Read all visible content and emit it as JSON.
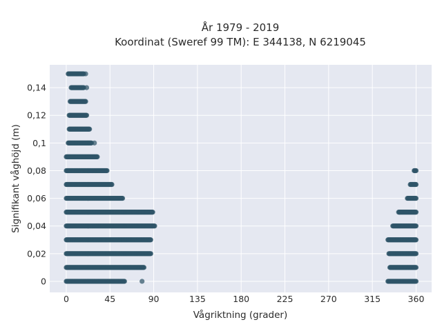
{
  "chart_data": {
    "type": "scatter",
    "title_lines": [
      "År 1979 - 2019",
      "Koordinat (Sweref 99 TM): E 344138, N 6219045"
    ],
    "xlabel": "Vågriktning (grader)",
    "ylabel": "Signifikant våghöjd (m)",
    "xlim": [
      -17,
      376
    ],
    "ylim": [
      -0.008,
      0.1565
    ],
    "x_ticks": [
      0,
      45,
      90,
      135,
      180,
      225,
      270,
      315,
      360
    ],
    "x_tick_labels": [
      "0",
      "45",
      "90",
      "135",
      "180",
      "225",
      "270",
      "315",
      "360"
    ],
    "y_ticks": [
      0,
      0.02,
      0.04,
      0.06,
      0.08,
      0.1,
      0.12,
      0.14
    ],
    "y_tick_labels": [
      "0",
      "0,02",
      "0,04",
      "0,06",
      "0,08",
      "0,1",
      "0,12",
      "0,14"
    ],
    "grid": true,
    "marker_color": "#2f5468",
    "plot_background": "#e5e8f1",
    "bands": [
      {
        "y": 0,
        "ranges": [
          [
            0,
            60
          ],
          [
            331,
            360
          ]
        ],
        "outliers": [
          78
        ]
      },
      {
        "y": 0.01,
        "ranges": [
          [
            0,
            80
          ],
          [
            333,
            360
          ]
        ],
        "outliers": []
      },
      {
        "y": 0.02,
        "ranges": [
          [
            0,
            87
          ],
          [
            332,
            360
          ]
        ],
        "outliers": []
      },
      {
        "y": 0.03,
        "ranges": [
          [
            0,
            87
          ],
          [
            331,
            360
          ]
        ],
        "outliers": []
      },
      {
        "y": 0.04,
        "ranges": [
          [
            0,
            91
          ],
          [
            336,
            360
          ]
        ],
        "outliers": []
      },
      {
        "y": 0.05,
        "ranges": [
          [
            0,
            89
          ],
          [
            342,
            360
          ]
        ],
        "outliers": [
          343
        ]
      },
      {
        "y": 0.06,
        "ranges": [
          [
            0,
            58
          ],
          [
            351,
            360
          ]
        ],
        "outliers": []
      },
      {
        "y": 0.07,
        "ranges": [
          [
            0,
            47
          ],
          [
            354,
            360
          ]
        ],
        "outliers": []
      },
      {
        "y": 0.08,
        "ranges": [
          [
            0,
            42
          ],
          [
            358,
            360
          ]
        ],
        "outliers": []
      },
      {
        "y": 0.09,
        "ranges": [
          [
            0,
            32
          ]
        ],
        "outliers": []
      },
      {
        "y": 0.1,
        "ranges": [
          [
            2,
            26
          ]
        ],
        "outliers": [
          29
        ]
      },
      {
        "y": 0.11,
        "ranges": [
          [
            3,
            24
          ]
        ],
        "outliers": []
      },
      {
        "y": 0.12,
        "ranges": [
          [
            3,
            21
          ]
        ],
        "outliers": []
      },
      {
        "y": 0.13,
        "ranges": [
          [
            4,
            20
          ]
        ],
        "outliers": []
      },
      {
        "y": 0.14,
        "ranges": [
          [
            5,
            18
          ]
        ],
        "outliers": [
          21
        ]
      },
      {
        "y": 0.15,
        "ranges": [
          [
            2,
            18
          ]
        ],
        "outliers": [
          20
        ]
      }
    ]
  }
}
